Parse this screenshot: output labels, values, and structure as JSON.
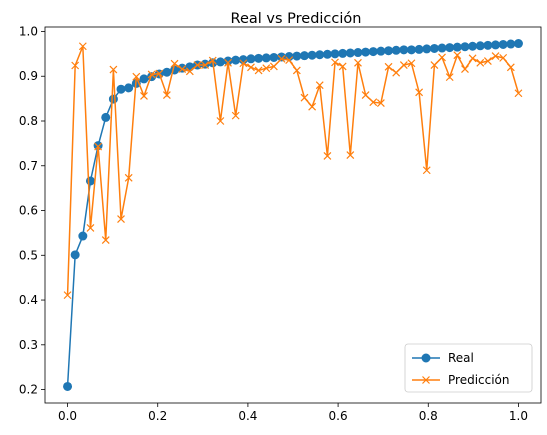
{
  "chart_data": {
    "type": "line",
    "title": "Real vs Predicción",
    "xlabel": "",
    "ylabel": "",
    "xlim": [
      -0.05,
      1.05
    ],
    "ylim": [
      0.17,
      1.01
    ],
    "xticks": [
      0.0,
      0.2,
      0.4,
      0.6,
      0.8,
      1.0
    ],
    "xtick_labels": [
      "0.0",
      "0.2",
      "0.4",
      "0.6",
      "0.8",
      "1.0"
    ],
    "yticks": [
      0.2,
      0.3,
      0.4,
      0.5,
      0.6,
      0.7,
      0.8,
      0.9,
      1.0
    ],
    "ytick_labels": [
      "0.2",
      "0.3",
      "0.4",
      "0.5",
      "0.6",
      "0.7",
      "0.8",
      "0.9",
      "1.0"
    ],
    "grid": false,
    "legend": {
      "position": "lower-right"
    },
    "series": [
      {
        "name": "Real",
        "color": "#1f77b4",
        "marker": "circle",
        "x": [
          0.0,
          0.0169,
          0.0339,
          0.0508,
          0.0678,
          0.0847,
          0.1017,
          0.1186,
          0.1356,
          0.1525,
          0.1695,
          0.1864,
          0.2034,
          0.2203,
          0.2373,
          0.2542,
          0.2712,
          0.2881,
          0.3051,
          0.322,
          0.339,
          0.3559,
          0.3729,
          0.3898,
          0.4068,
          0.4237,
          0.4407,
          0.4576,
          0.4746,
          0.4915,
          0.5085,
          0.5254,
          0.5424,
          0.5593,
          0.5763,
          0.5932,
          0.6102,
          0.6271,
          0.6441,
          0.661,
          0.678,
          0.6949,
          0.7119,
          0.7288,
          0.7458,
          0.7627,
          0.7797,
          0.7966,
          0.8136,
          0.8305,
          0.8475,
          0.8644,
          0.8814,
          0.8983,
          0.9153,
          0.9322,
          0.9492,
          0.9661,
          0.9831,
          1.0
        ],
        "y": [
          0.207,
          0.501,
          0.543,
          0.666,
          0.745,
          0.808,
          0.849,
          0.871,
          0.874,
          0.884,
          0.894,
          0.899,
          0.905,
          0.909,
          0.914,
          0.918,
          0.921,
          0.925,
          0.927,
          0.93,
          0.932,
          0.934,
          0.936,
          0.937,
          0.939,
          0.94,
          0.941,
          0.942,
          0.943,
          0.944,
          0.945,
          0.946,
          0.947,
          0.948,
          0.949,
          0.95,
          0.951,
          0.952,
          0.953,
          0.954,
          0.955,
          0.956,
          0.957,
          0.958,
          0.959,
          0.959,
          0.96,
          0.961,
          0.962,
          0.963,
          0.964,
          0.965,
          0.966,
          0.967,
          0.968,
          0.969,
          0.97,
          0.971,
          0.972,
          0.973
        ]
      },
      {
        "name": "Predicción",
        "color": "#ff7f0e",
        "marker": "x",
        "x": [
          0.0,
          0.0169,
          0.0339,
          0.0508,
          0.0678,
          0.0847,
          0.1017,
          0.1186,
          0.1356,
          0.1525,
          0.1695,
          0.1864,
          0.2034,
          0.2203,
          0.2373,
          0.2542,
          0.2712,
          0.2881,
          0.3051,
          0.322,
          0.339,
          0.3559,
          0.3729,
          0.3898,
          0.4068,
          0.4237,
          0.4407,
          0.4576,
          0.4746,
          0.4915,
          0.5085,
          0.5254,
          0.5424,
          0.5593,
          0.5763,
          0.5932,
          0.6102,
          0.6271,
          0.6441,
          0.661,
          0.678,
          0.6949,
          0.7119,
          0.7288,
          0.7458,
          0.7627,
          0.7797,
          0.7966,
          0.8136,
          0.8305,
          0.8475,
          0.8644,
          0.8814,
          0.8983,
          0.9153,
          0.9322,
          0.9492,
          0.9661,
          0.9831,
          1.0
        ],
        "y": [
          0.411,
          0.924,
          0.967,
          0.561,
          0.743,
          0.534,
          0.915,
          0.581,
          0.673,
          0.899,
          0.856,
          0.904,
          0.906,
          0.858,
          0.928,
          0.916,
          0.911,
          0.925,
          0.925,
          0.935,
          0.8,
          0.93,
          0.812,
          0.929,
          0.92,
          0.913,
          0.918,
          0.922,
          0.939,
          0.936,
          0.913,
          0.852,
          0.832,
          0.88,
          0.722,
          0.931,
          0.922,
          0.724,
          0.93,
          0.858,
          0.842,
          0.84,
          0.921,
          0.908,
          0.925,
          0.929,
          0.864,
          0.69,
          0.925,
          0.942,
          0.898,
          0.947,
          0.916,
          0.94,
          0.93,
          0.934,
          0.945,
          0.941,
          0.92,
          0.862
        ]
      }
    ]
  }
}
